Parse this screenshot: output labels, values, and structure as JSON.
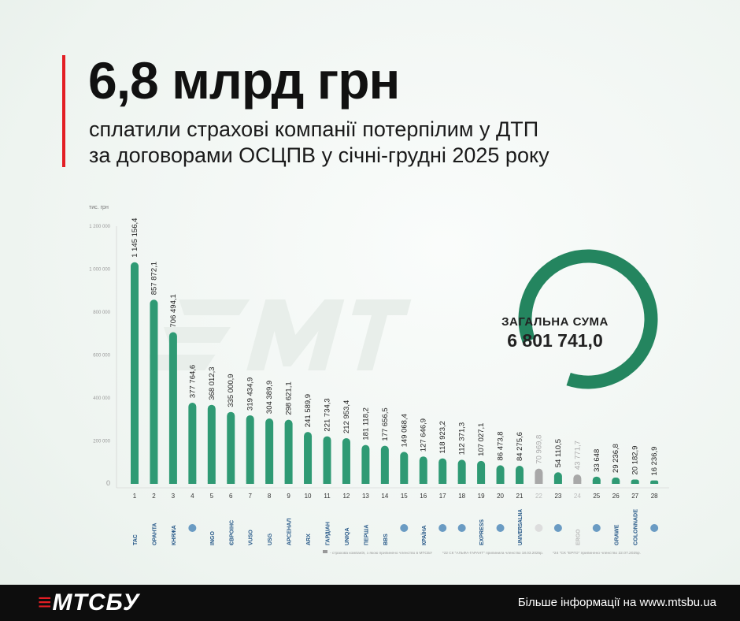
{
  "header": {
    "title": "6,8 млрд грн",
    "subtitle_line1": "сплатили страхові компанії потерпілим у ДТП",
    "subtitle_line2": "за договорами ОСЦПВ у січні-грудні 2025 року"
  },
  "total": {
    "label": "ЗАГАЛЬНА СУМА",
    "value": "6 801 741,0"
  },
  "footer": {
    "logo": "МТСБУ",
    "info": "Більше інформації на www.mtsbu.ua"
  },
  "watermark": "МТСБУ",
  "footnotes": [
    "- страхова компанія, з якою припинено членство в МТСБУ",
    "*22 СК \"АЛЬФА-ГАРАНТ\" припинила членство 18.03.2025р.",
    "*24 \"СК \"ЕРГО\" припинено членство 22.07.2025р."
  ],
  "colors": {
    "bar": "#2f9a74",
    "inactive": "#a8a8a8",
    "ring": "#24855f",
    "accent": "#e31e24"
  },
  "chart_data": {
    "type": "bar",
    "title": "",
    "ylabel": "тис. грн",
    "ylim": [
      0,
      1200000
    ],
    "yticks": [
      0,
      200000,
      400000,
      600000,
      800000,
      1000000,
      1200000
    ],
    "ytick_labels": [
      "0",
      "200 000",
      "400 000",
      "600 000",
      "800 000",
      "1 000 000",
      "1 200 000"
    ],
    "categories": [
      "1",
      "2",
      "3",
      "4",
      "5",
      "6",
      "7",
      "8",
      "9",
      "10",
      "11",
      "12",
      "13",
      "14",
      "15",
      "16",
      "17",
      "18",
      "19",
      "20",
      "21",
      "22",
      "23",
      "24",
      "25",
      "26",
      "27",
      "28"
    ],
    "companies": [
      "ТАС",
      "ОРАНТА",
      "КНЯЖА",
      "",
      "INGO",
      "ЄВРОІНС",
      "VUSO",
      "USG",
      "АРСЕНАЛ",
      "ARX",
      "ГАРДІАН",
      "UNIQA",
      "ПЕРША",
      "BBS",
      "",
      "КРАЇНА",
      "",
      "",
      "EXPRESS",
      "",
      "UNIVERSALNA",
      "",
      "",
      "ERGO",
      "",
      "GRAWE",
      "COLONNADE",
      ""
    ],
    "values": [
      1145156.4,
      857872.1,
      706494.1,
      377764.6,
      368012.3,
      335000.9,
      319434.9,
      304389.9,
      298621.1,
      241589.9,
      221734.3,
      212953.4,
      181118.2,
      177656.5,
      149068.4,
      127646.9,
      118923.2,
      112371.3,
      107027.1,
      86473.8,
      84275.6,
      70969.8,
      54110.5,
      43771.7,
      33648,
      29236.8,
      20182.9,
      16236.9
    ],
    "value_labels": [
      "1 145 156,4",
      "857 872,1",
      "706 494,1",
      "377 764,6",
      "368 012,3",
      "335 000,9",
      "319 434,9",
      "304 389,9",
      "298 621,1",
      "241 589,9",
      "221 734,3",
      "212 953,4",
      "181 118,2",
      "177 656,5",
      "149 068,4",
      "127 646,9",
      "118 923,2",
      "112 371,3",
      "107 027,1",
      "86 473,8",
      "84 275,6",
      "70 969,8",
      "54 110,5",
      "43 771,7",
      "33 648",
      "29 236,8",
      "20 182,9",
      "16 236,9"
    ],
    "inactive": [
      22,
      24
    ]
  }
}
